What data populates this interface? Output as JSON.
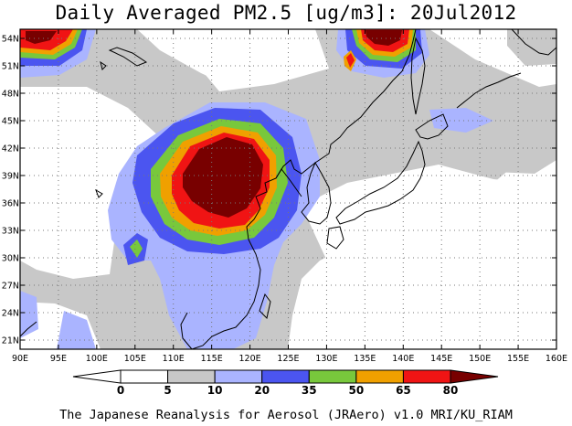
{
  "title": "Daily Averaged PM2.5 [ug/m3]: 20Jul2012",
  "footer": "The Japanese Reanalysis for Aerosol (JRAero) v1.0 MRI/KU_RIAM",
  "map": {
    "lon_range": [
      90,
      160
    ],
    "lat_range": [
      20,
      55
    ],
    "x_ticks": [
      "90E",
      "95E",
      "100E",
      "105E",
      "110E",
      "115E",
      "120E",
      "125E",
      "130E",
      "135E",
      "140E",
      "145E",
      "150E",
      "155E",
      "160E"
    ],
    "y_ticks": [
      "21N",
      "24N",
      "27N",
      "30N",
      "33N",
      "36N",
      "39N",
      "42N",
      "45N",
      "48N",
      "51N",
      "54N"
    ],
    "grid": "dotted"
  },
  "colorbar": {
    "levels": [
      "0",
      "5",
      "10",
      "20",
      "35",
      "50",
      "65",
      "80"
    ],
    "colors": [
      "#ffffff",
      "#ffffff",
      "#c8c8c8",
      "#aab4ff",
      "#4b55f0",
      "#78c83c",
      "#f0a000",
      "#f01414",
      "#780000"
    ]
  },
  "chart_data": {
    "type": "heatmap",
    "title": "Daily Averaged PM2.5 [ug/m3]: 20Jul2012",
    "xlim": [
      90,
      160
    ],
    "ylim": [
      20,
      55
    ],
    "levels": [
      0,
      5,
      10,
      20,
      35,
      50,
      65,
      80
    ],
    "features": [
      {
        "region": "North China Plain",
        "peak_class": ">80",
        "center_lon": 116.5,
        "center_lat": 38.5
      },
      {
        "region": "Sichuan Basin",
        "peak_class": "20-35",
        "center_lon": 104.5,
        "center_lat": 31
      },
      {
        "region": "NW corner (~54N, 92E)",
        "peak_class": ">80",
        "center_lon": 92.5,
        "center_lat": 53.5
      },
      {
        "region": "Amur region (~54N, 136E)",
        "peak_class": ">80",
        "center_lon": 136,
        "center_lat": 54
      }
    ]
  }
}
